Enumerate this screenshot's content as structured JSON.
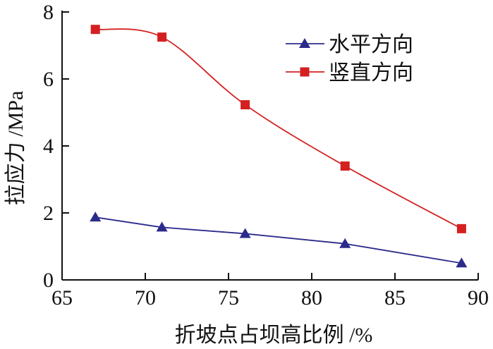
{
  "chart_data": {
    "type": "line",
    "title": "",
    "xlabel": "折坡点占坝高比例 /%",
    "ylabel": "拉应力 /MPa",
    "xlim": [
      65,
      90
    ],
    "ylim": [
      0,
      8
    ],
    "xticks": [
      65,
      70,
      75,
      80,
      85,
      90
    ],
    "yticks": [
      0,
      2,
      4,
      6,
      8
    ],
    "grid": false,
    "legend_position": "top-right",
    "x": [
      67,
      71,
      76,
      82,
      89
    ],
    "series": [
      {
        "name": "水平方向",
        "color": "#2b2b8c",
        "marker": "triangle",
        "smooth": false,
        "values": [
          1.87,
          1.57,
          1.38,
          1.08,
          0.5
        ]
      },
      {
        "name": "竖直方向",
        "color": "#d42020",
        "marker": "square",
        "smooth": true,
        "values": [
          7.48,
          7.25,
          5.23,
          3.4,
          1.53
        ]
      }
    ]
  }
}
